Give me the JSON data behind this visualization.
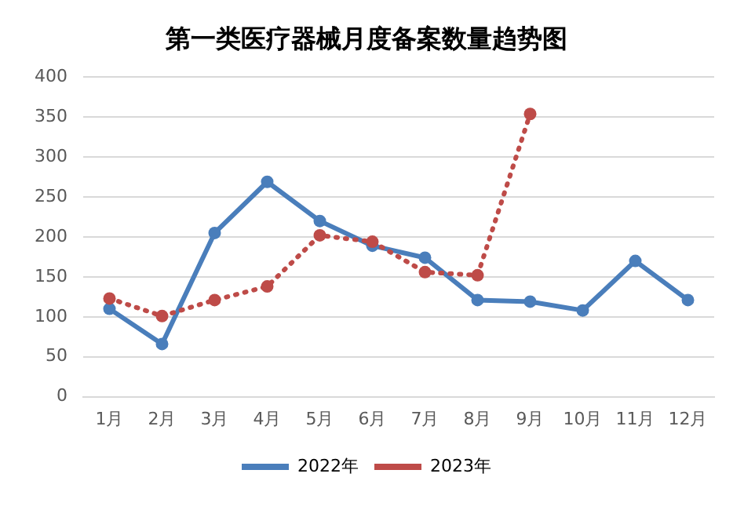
{
  "chart_data": {
    "type": "line",
    "title": "第一类医疗器械月度备案数量趋势图",
    "categories": [
      "1月",
      "2月",
      "3月",
      "4月",
      "5月",
      "6月",
      "7月",
      "8月",
      "9月",
      "10月",
      "11月",
      "12月"
    ],
    "series": [
      {
        "name": "2022年",
        "color": "#4a7ebb",
        "values": [
          110,
          66,
          205,
          269,
          220,
          189,
          174,
          121,
          119,
          108,
          170,
          121
        ],
        "line_style": "solid"
      },
      {
        "name": "2023年",
        "color": "#be4b48",
        "values": [
          123,
          101,
          121,
          138,
          202,
          194,
          156,
          152,
          354,
          null,
          null,
          null
        ],
        "line_style": "dotted"
      }
    ],
    "ylim": [
      0,
      400
    ],
    "yticks": [
      0,
      50,
      100,
      150,
      200,
      250,
      300,
      350,
      400
    ],
    "grid": "y",
    "legend": "bottom",
    "marker": "circle"
  }
}
